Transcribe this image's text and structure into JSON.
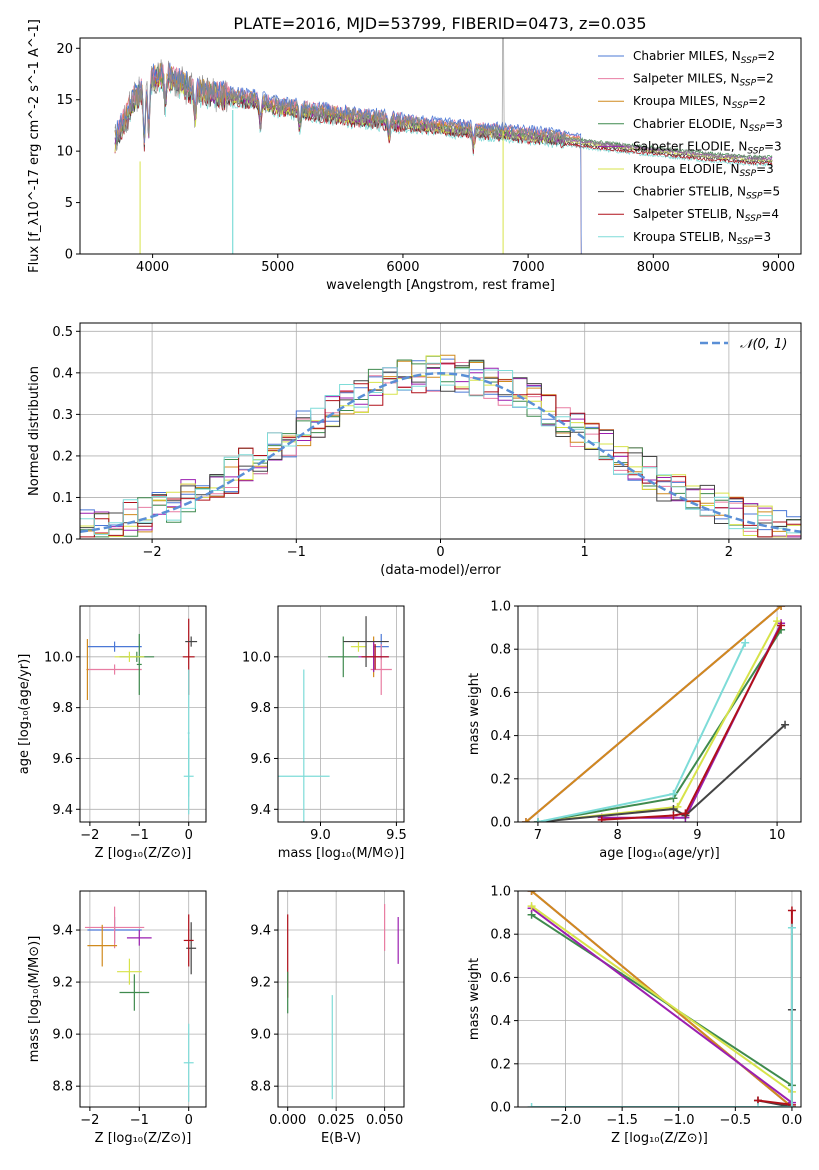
{
  "figure": {
    "title": "PLATE=2016, MJD=53799, FIBERID=0473, z=0.035"
  },
  "chart_data": [
    {
      "id": "spectrum",
      "type": "line",
      "xlabel": "wavelength [Angstrom, rest frame]",
      "ylabel": "Flux [f_λ10^-17 erg cm^-2 s^-1 A^-1]",
      "xlim": [
        3420,
        9180
      ],
      "ylim": [
        0,
        21
      ],
      "xticks": [
        4000,
        5000,
        6000,
        7000,
        8000,
        9000
      ],
      "yticks": [
        0,
        5,
        10,
        15,
        20
      ],
      "grid": false,
      "legend_position": "top-right",
      "series": [
        {
          "name": "Chabrier MILES, N_SSP=2",
          "color": "#4b78d6"
        },
        {
          "name": "Salpeter MILES, N_SSP=2",
          "color": "#e87da2"
        },
        {
          "name": "Kroupa MILES, N_SSP=2",
          "color": "#d08a1e"
        },
        {
          "name": "Chabrier ELODIE, N_SSP=3",
          "color": "#3f8a4e"
        },
        {
          "name": "Salpeter ELODIE, N_SSP=3",
          "color": "#9b1fb0"
        },
        {
          "name": "Kroupa ELODIE, N_SSP=3",
          "color": "#d7e34a"
        },
        {
          "name": "Chabrier STELIB, N_SSP=5",
          "color": "#444444"
        },
        {
          "name": "Salpeter STELIB, N_SSP=4",
          "color": "#b0101a"
        },
        {
          "name": "Kroupa STELIB, N_SSP=3",
          "color": "#7edcd8"
        }
      ],
      "continuum": {
        "x": [
          3700,
          3850,
          4000,
          4100,
          4300,
          4500,
          4800,
          5000,
          5300,
          5600,
          6000,
          6400,
          6800,
          7200,
          7600,
          8000,
          8400,
          8800
        ],
        "y": [
          11,
          15,
          17,
          17.5,
          16,
          15.5,
          15,
          14.3,
          13.8,
          13.3,
          12.8,
          12.2,
          11.8,
          11.3,
          10.7,
          10.2,
          9.7,
          9.3
        ]
      }
    },
    {
      "id": "residuals",
      "type": "histogram",
      "xlabel": "(data-model)/error",
      "ylabel": "Normed distribution",
      "xlim": [
        -2.5,
        2.5
      ],
      "ylim": [
        0,
        0.52
      ],
      "xticks": [
        -2,
        -1,
        0,
        1,
        2
      ],
      "yticks": [
        0.0,
        0.1,
        0.2,
        0.3,
        0.4,
        0.5
      ],
      "grid": true,
      "legend_position": "top-right",
      "reference": {
        "name": "𝒩(0, 1)",
        "mean": 0,
        "sigma": 1
      }
    },
    {
      "id": "age-vs-Z",
      "type": "errorbar",
      "xlabel": "Z [log₁₀(Z/Z⊙)]",
      "ylabel": "age  [log₁₀(age/yr)]",
      "xlim": [
        -2.2,
        0.35
      ],
      "ylim": [
        9.35,
        10.2
      ],
      "xticks": [
        -2,
        -1,
        0
      ],
      "yticks": [
        9.4,
        9.6,
        9.8,
        10.0
      ],
      "grid": true,
      "points": [
        {
          "x": -1.5,
          "y": 10.04,
          "xerr": 0.55,
          "yerr": 0.02,
          "color": "#4b78d6"
        },
        {
          "x": -1.5,
          "y": 9.95,
          "xerr": 0.55,
          "yerr": 0.02,
          "color": "#e87da2"
        },
        {
          "x": -2.05,
          "y": 9.95,
          "xerr": 0.02,
          "yerr": 0.12,
          "color": "#d08a1e"
        },
        {
          "x": -1.0,
          "y": 9.97,
          "xerr": 0.05,
          "yerr": 0.12,
          "color": "#3f8a4e"
        },
        {
          "x": -1.05,
          "y": 10.0,
          "xerr": 0.35,
          "yerr": 0.02,
          "color": "#3f8a4e"
        },
        {
          "x": -1.2,
          "y": 10.0,
          "xerr": 0.3,
          "yerr": 0.02,
          "color": "#d7e34a"
        },
        {
          "x": 0.0,
          "y": 10.0,
          "xerr": 0.12,
          "yerr": 0.15,
          "color": "#b0101a"
        },
        {
          "x": 0.05,
          "y": 10.06,
          "xerr": 0.12,
          "yerr": 0.02,
          "color": "#444444"
        },
        {
          "x": 0.0,
          "y": 9.53,
          "xerr": 0.1,
          "yerr": 0.15,
          "color": "#7edcd8"
        },
        {
          "x": 0.0,
          "y": 9.7,
          "xerr": 0.02,
          "yerr": 0.25,
          "color": "#7edcd8"
        }
      ]
    },
    {
      "id": "age-vs-mass",
      "type": "errorbar",
      "xlabel": "mass [log₁₀(M/M⊙)]",
      "ylabel": "",
      "xlim": [
        8.72,
        9.55
      ],
      "ylim": [
        9.35,
        10.2
      ],
      "xticks": [
        9.0,
        9.5
      ],
      "yticks": [
        9.4,
        9.6,
        9.8,
        10.0
      ],
      "grid": true,
      "points": [
        {
          "x": 9.4,
          "y": 10.04,
          "xerr": 0.05,
          "yerr": 0.05,
          "color": "#4b78d6"
        },
        {
          "x": 9.4,
          "y": 9.95,
          "xerr": 0.07,
          "yerr": 0.1,
          "color": "#e87da2"
        },
        {
          "x": 9.35,
          "y": 10.0,
          "xerr": 0.05,
          "yerr": 0.08,
          "color": "#d08a1e"
        },
        {
          "x": 9.15,
          "y": 10.0,
          "xerr": 0.1,
          "yerr": 0.08,
          "color": "#3f8a4e"
        },
        {
          "x": 9.35,
          "y": 10.0,
          "xerr": 0.1,
          "yerr": 0.06,
          "color": "#9b1fb0"
        },
        {
          "x": 9.25,
          "y": 10.04,
          "xerr": 0.05,
          "yerr": 0.02,
          "color": "#d7e34a"
        },
        {
          "x": 9.3,
          "y": 10.06,
          "xerr": 0.15,
          "yerr": 0.1,
          "color": "#444444"
        },
        {
          "x": 9.36,
          "y": 10.0,
          "xerr": 0.09,
          "yerr": 0.05,
          "color": "#b0101a"
        },
        {
          "x": 8.89,
          "y": 9.53,
          "xerr": 0.17,
          "yerr": 0.42,
          "color": "#7edcd8"
        }
      ]
    },
    {
      "id": "weight-vs-age",
      "type": "line",
      "xlabel": "age  [log₁₀(age/yr)]",
      "ylabel": "mass weight",
      "xlim": [
        6.75,
        10.3
      ],
      "ylim": [
        0,
        1
      ],
      "xticks": [
        7,
        8,
        9,
        10
      ],
      "yticks": [
        0.0,
        0.2,
        0.4,
        0.6,
        0.8,
        1.0
      ],
      "grid": true,
      "series": [
        {
          "color": "#4b78d6",
          "x": [
            6.85,
            10.05
          ],
          "y": [
            0.0,
            1.0
          ]
        },
        {
          "color": "#e87da2",
          "x": [
            6.85,
            10.05
          ],
          "y": [
            0.0,
            1.0
          ]
        },
        {
          "color": "#d08a1e",
          "x": [
            6.85,
            10.05
          ],
          "y": [
            0.0,
            1.0
          ]
        },
        {
          "color": "#3f8a4e",
          "x": [
            7.0,
            8.7,
            10.05
          ],
          "y": [
            0.0,
            0.11,
            0.89
          ]
        },
        {
          "color": "#9b1fb0",
          "x": [
            7.8,
            8.85,
            10.05
          ],
          "y": [
            0.02,
            0.02,
            0.92
          ]
        },
        {
          "color": "#d7e34a",
          "x": [
            7.0,
            8.75,
            10.0
          ],
          "y": [
            0.0,
            0.07,
            0.93
          ]
        },
        {
          "color": "#444444",
          "x": [
            7.0,
            8.7,
            8.85,
            10.1
          ],
          "y": [
            0.0,
            0.06,
            0.03,
            0.45
          ]
        },
        {
          "color": "#b0101a",
          "x": [
            7.8,
            8.7,
            8.85,
            10.05
          ],
          "y": [
            0.01,
            0.03,
            0.04,
            0.91
          ]
        },
        {
          "color": "#7edcd8",
          "x": [
            7.0,
            8.7,
            9.6
          ],
          "y": [
            0.0,
            0.13,
            0.83
          ]
        }
      ]
    },
    {
      "id": "mass-vs-Z",
      "type": "errorbar",
      "xlabel": "Z [log₁₀(Z/Z⊙)]",
      "ylabel": "mass [log₁₀(M/M⊙)]",
      "xlim": [
        -2.2,
        0.35
      ],
      "ylim": [
        8.72,
        9.55
      ],
      "xticks": [
        -2,
        -1,
        0
      ],
      "yticks": [
        8.8,
        9.0,
        9.2,
        9.4
      ],
      "grid": true,
      "points": [
        {
          "x": -1.5,
          "y": 9.4,
          "xerr": 0.55,
          "yerr": 0.05,
          "color": "#4b78d6"
        },
        {
          "x": -1.5,
          "y": 9.41,
          "xerr": 0.6,
          "yerr": 0.08,
          "color": "#e87da2"
        },
        {
          "x": -1.75,
          "y": 9.34,
          "xerr": 0.3,
          "yerr": 0.08,
          "color": "#d08a1e"
        },
        {
          "x": -1.1,
          "y": 9.16,
          "xerr": 0.3,
          "yerr": 0.07,
          "color": "#3f8a4e"
        },
        {
          "x": -1.0,
          "y": 9.37,
          "xerr": 0.25,
          "yerr": 0.03,
          "color": "#9b1fb0"
        },
        {
          "x": -1.2,
          "y": 9.24,
          "xerr": 0.25,
          "yerr": 0.05,
          "color": "#d7e34a"
        },
        {
          "x": 0.05,
          "y": 9.33,
          "xerr": 0.1,
          "yerr": 0.1,
          "color": "#444444"
        },
        {
          "x": 0.0,
          "y": 9.36,
          "xerr": 0.1,
          "yerr": 0.1,
          "color": "#b0101a"
        },
        {
          "x": 0.0,
          "y": 8.89,
          "xerr": 0.1,
          "yerr": 0.15,
          "color": "#7edcd8"
        }
      ]
    },
    {
      "id": "mass-vs-EBV",
      "type": "errorbar",
      "xlabel": "E(B-V)",
      "ylabel": "",
      "xlim": [
        -0.005,
        0.06
      ],
      "ylim": [
        8.72,
        9.55
      ],
      "xticks": [
        0.0,
        0.025,
        0.05
      ],
      "yticks": [
        8.8,
        9.0,
        9.2,
        9.4
      ],
      "grid": true,
      "points": [
        {
          "x": 0.0,
          "y": 9.3,
          "xerr": 0.0,
          "yerr": 0.16,
          "color": "#b0101a"
        },
        {
          "x": 0.0,
          "y": 9.16,
          "xerr": 0.0,
          "yerr": 0.08,
          "color": "#3f8a4e"
        },
        {
          "x": 0.023,
          "y": 8.95,
          "xerr": 0.0,
          "yerr": 0.2,
          "color": "#7edcd8"
        },
        {
          "x": 0.05,
          "y": 9.41,
          "xerr": 0.0,
          "yerr": 0.09,
          "color": "#e87da2"
        },
        {
          "x": 0.057,
          "y": 9.36,
          "xerr": 0.0,
          "yerr": 0.09,
          "color": "#9b1fb0"
        }
      ]
    },
    {
      "id": "weight-vs-Z",
      "type": "line",
      "xlabel": "Z [log₁₀(Z/Z⊙)]",
      "ylabel": "mass weight",
      "xlim": [
        -2.42,
        0.08
      ],
      "ylim": [
        0,
        1
      ],
      "xticks": [
        -2.0,
        -1.5,
        -1.0,
        -0.5,
        0.0
      ],
      "yticks": [
        0.0,
        0.2,
        0.4,
        0.6,
        0.8,
        1.0
      ],
      "grid": true,
      "series": [
        {
          "color": "#4b78d6",
          "x": [
            -2.3,
            0.0
          ],
          "y": [
            1.0,
            0.0
          ]
        },
        {
          "color": "#e87da2",
          "x": [
            -2.3,
            0.0
          ],
          "y": [
            1.0,
            0.0
          ]
        },
        {
          "color": "#d08a1e",
          "x": [
            -2.3,
            0.0
          ],
          "y": [
            1.0,
            0.0
          ]
        },
        {
          "color": "#3f8a4e",
          "x": [
            -2.3,
            0.0
          ],
          "y": [
            0.89,
            0.1
          ]
        },
        {
          "color": "#9b1fb0",
          "x": [
            -2.3,
            0.0
          ],
          "y": [
            0.92,
            0.02
          ]
        },
        {
          "color": "#d7e34a",
          "x": [
            -2.3,
            0.0
          ],
          "y": [
            0.93,
            0.07
          ]
        },
        {
          "color": "#444444",
          "x": [
            -0.3,
            0.0,
            0.0
          ],
          "y": [
            0.03,
            0.0,
            0.45
          ]
        },
        {
          "color": "#b0101a",
          "x": [
            -0.3,
            0.0,
            0.0
          ],
          "y": [
            0.03,
            0.01,
            0.91
          ]
        },
        {
          "color": "#7edcd8",
          "x": [
            -2.3,
            -0.3,
            0.0,
            0.0
          ],
          "y": [
            0.0,
            0.0,
            0.0,
            0.83
          ]
        }
      ]
    }
  ]
}
